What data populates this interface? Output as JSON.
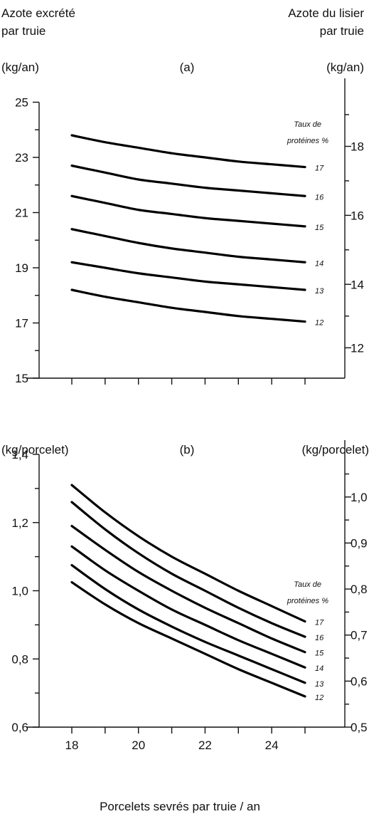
{
  "texts": {
    "left_axis_title_line1": "Azote excrété",
    "left_axis_title_line2": "par truie",
    "right_axis_title_line1": "Azote du lisier",
    "right_axis_title_line2": "par truie",
    "xlabel": "Porcelets sevrés par truie / an",
    "protein_label_line1": "Taux de",
    "protein_label_line2": "protéines %"
  },
  "chart_data": [
    {
      "type": "line",
      "panel_label": "(a)",
      "ylabel_left": "(kg/an)",
      "ylabel_right": "(kg/an)",
      "x_ticks": [
        18,
        19,
        20,
        21,
        22,
        23,
        24,
        25
      ],
      "xlim": [
        17,
        26
      ],
      "ylim": [
        15,
        25.4
      ],
      "y_ticks": [
        15,
        17,
        19,
        21,
        23,
        25
      ],
      "y_ticks_right": [
        {
          "label": "12",
          "y_left": 16.1
        },
        {
          "label": "14",
          "y_left": 18.4
        },
        {
          "label": "16",
          "y_left": 20.9
        },
        {
          "label": "18",
          "y_left": 23.4
        }
      ],
      "series": [
        {
          "name": "17",
          "x": [
            18,
            19,
            20,
            21,
            22,
            23,
            24,
            25
          ],
          "values": [
            23.8,
            23.55,
            23.35,
            23.15,
            23.0,
            22.85,
            22.75,
            22.65
          ]
        },
        {
          "name": "16",
          "x": [
            18,
            19,
            20,
            21,
            22,
            23,
            24,
            25
          ],
          "values": [
            22.7,
            22.45,
            22.2,
            22.05,
            21.9,
            21.8,
            21.7,
            21.6
          ]
        },
        {
          "name": "15",
          "x": [
            18,
            19,
            20,
            21,
            22,
            23,
            24,
            25
          ],
          "values": [
            21.6,
            21.35,
            21.1,
            20.95,
            20.8,
            20.7,
            20.6,
            20.5
          ]
        },
        {
          "name": "14",
          "x": [
            18,
            19,
            20,
            21,
            22,
            23,
            24,
            25
          ],
          "values": [
            20.4,
            20.15,
            19.9,
            19.7,
            19.55,
            19.4,
            19.3,
            19.2
          ]
        },
        {
          "name": "13",
          "x": [
            18,
            19,
            20,
            21,
            22,
            23,
            24,
            25
          ],
          "values": [
            19.2,
            19.0,
            18.8,
            18.65,
            18.5,
            18.4,
            18.3,
            18.2
          ]
        },
        {
          "name": "12",
          "x": [
            18,
            19,
            20,
            21,
            22,
            23,
            24,
            25
          ],
          "values": [
            18.2,
            17.95,
            17.75,
            17.55,
            17.4,
            17.25,
            17.15,
            17.05
          ]
        }
      ]
    },
    {
      "type": "line",
      "panel_label": "(b)",
      "ylabel_left": "(kg/porcelet)",
      "ylabel_right": "(kg/porcelet)",
      "x_ticks": [
        18,
        19,
        20,
        21,
        22,
        23,
        24,
        25
      ],
      "x_tick_labels": [
        "18",
        "",
        "20",
        "",
        "22",
        "",
        "24",
        ""
      ],
      "xlim": [
        17,
        26
      ],
      "ylim": [
        0.6,
        1.4
      ],
      "y_ticks": [
        0.6,
        0.8,
        1.0,
        1.2,
        1.4
      ],
      "y_tick_labels": [
        "0,6",
        "0,8",
        "1,0",
        "1,2",
        "1,4"
      ],
      "y_ticks_right": [
        {
          "label": "0,5",
          "y_left": 0.6
        },
        {
          "label": "0,6",
          "y_left": 0.735
        },
        {
          "label": "0,7",
          "y_left": 0.87
        },
        {
          "label": "0,8",
          "y_left": 1.005
        },
        {
          "label": "0,9",
          "y_left": 1.14
        },
        {
          "label": "1,0",
          "y_left": 1.275
        }
      ],
      "series": [
        {
          "name": "17",
          "x": [
            18,
            19,
            20,
            21,
            22,
            23,
            24,
            25
          ],
          "values": [
            1.31,
            1.23,
            1.16,
            1.1,
            1.05,
            1.0,
            0.955,
            0.91
          ]
        },
        {
          "name": "16",
          "x": [
            18,
            19,
            20,
            21,
            22,
            23,
            24,
            25
          ],
          "values": [
            1.26,
            1.18,
            1.11,
            1.05,
            1.0,
            0.95,
            0.905,
            0.865
          ]
        },
        {
          "name": "15",
          "x": [
            18,
            19,
            20,
            21,
            22,
            23,
            24,
            25
          ],
          "values": [
            1.19,
            1.12,
            1.055,
            1.0,
            0.95,
            0.905,
            0.86,
            0.82
          ]
        },
        {
          "name": "14",
          "x": [
            18,
            19,
            20,
            21,
            22,
            23,
            24,
            25
          ],
          "values": [
            1.13,
            1.06,
            1.0,
            0.945,
            0.9,
            0.855,
            0.815,
            0.775
          ]
        },
        {
          "name": "13",
          "x": [
            18,
            19,
            20,
            21,
            22,
            23,
            24,
            25
          ],
          "values": [
            1.075,
            1.005,
            0.945,
            0.895,
            0.85,
            0.81,
            0.77,
            0.73
          ]
        },
        {
          "name": "12",
          "x": [
            18,
            19,
            20,
            21,
            22,
            23,
            24,
            25
          ],
          "values": [
            1.025,
            0.96,
            0.905,
            0.86,
            0.815,
            0.77,
            0.73,
            0.69
          ]
        }
      ]
    }
  ]
}
